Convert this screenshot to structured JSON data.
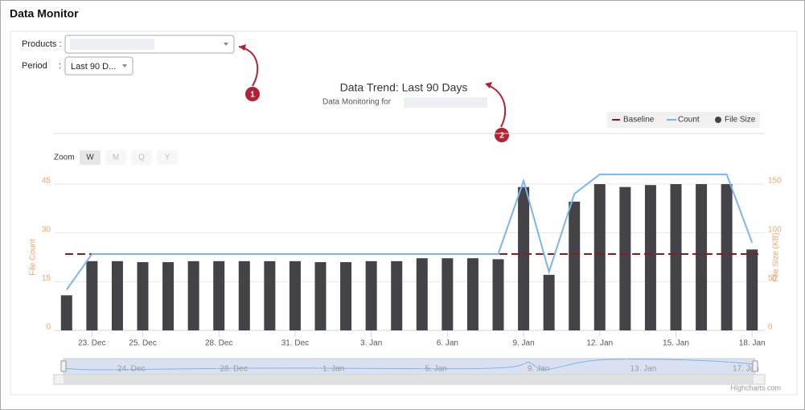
{
  "header": {
    "title": "Data Monitor"
  },
  "filters": {
    "products_label": "Products :",
    "period_label": "Period",
    "period_sep": ":",
    "period_value": "Last 90 D..."
  },
  "callouts": [
    "1",
    "2"
  ],
  "chart": {
    "type": "combo",
    "title": "Data Trend: Last 90 Days",
    "subtitle": "Data Monitoring for",
    "zoom": {
      "label": "Zoom",
      "buttons": [
        "W",
        "M",
        "Q",
        "Y"
      ]
    },
    "y_title": "File Count",
    "y2_title": "File Size (KB)",
    "ylim": [
      0,
      45
    ],
    "yticks": [
      0,
      15,
      30,
      45
    ],
    "y2lim": [
      0,
      150
    ],
    "y2ticks": [
      0,
      50,
      100,
      150
    ],
    "grid": true,
    "categories": [
      null,
      "23. Dec",
      null,
      "25. Dec",
      null,
      null,
      "28. Dec",
      null,
      null,
      "31. Dec",
      null,
      null,
      "3. Jan",
      null,
      null,
      "6. Jan",
      null,
      null,
      "9. Jan",
      null,
      null,
      "12. Jan",
      null,
      null,
      "15. Jan",
      null,
      null,
      "18. Jan"
    ],
    "series": [
      {
        "name": "Baseline",
        "color": "#8b1a1a",
        "value": 23.5,
        "dashed": true
      },
      {
        "name": "Count",
        "color": "#7cb5ec",
        "values": [
          12.5,
          23.5,
          23.5,
          23.5,
          23.5,
          23.5,
          23.5,
          23.5,
          23.5,
          23.5,
          23.5,
          23.5,
          23.5,
          23.5,
          23.5,
          23.5,
          23.5,
          23.5,
          46,
          18,
          42,
          48,
          48,
          48,
          48,
          48,
          48,
          27
        ]
      },
      {
        "name": "File Size",
        "color": "#434348",
        "axis": "y2",
        "values": [
          36,
          71,
          71,
          70,
          70,
          71,
          71,
          71,
          71,
          71,
          70,
          70,
          71,
          71,
          74,
          74,
          74,
          73,
          147,
          57,
          132,
          150,
          147,
          149,
          150,
          150,
          150,
          83
        ]
      }
    ],
    "navigator_labels": [
      "24. Dec",
      "28. Dec",
      "1. Jan",
      "5. Jan",
      "9. Jan",
      "13. Jan",
      "17. Jan"
    ],
    "credits": "Highcharts.com"
  }
}
